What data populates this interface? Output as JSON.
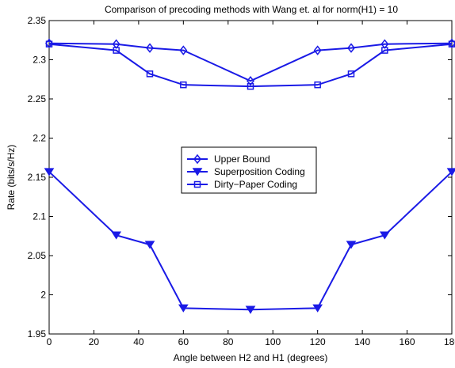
{
  "chart_data": {
    "type": "line",
    "title": "Comparison of precoding methods with Wang et. al for norm(H1) = 10",
    "xlabel": "Angle between H2 and H1 (degrees)",
    "ylabel": "Rate (bits/s/Hz)",
    "xlim": [
      0,
      180
    ],
    "ylim": [
      1.95,
      2.35
    ],
    "xticks": [
      0,
      20,
      40,
      60,
      80,
      100,
      120,
      140,
      160,
      180
    ],
    "xtick_labels": [
      "0",
      "20",
      "40",
      "60",
      "80",
      "100",
      "120",
      "140",
      "160",
      "180"
    ],
    "yticks": [
      1.95,
      2.0,
      2.05,
      2.1,
      2.15,
      2.2,
      2.25,
      2.3,
      2.35
    ],
    "ytick_labels": [
      "1.95",
      "2",
      "2.05",
      "2.1",
      "2.15",
      "2.2",
      "2.25",
      "2.3",
      "2.35"
    ],
    "grid": false,
    "legend_position": "center",
    "line_color": "#1a1ae6",
    "x": [
      0,
      30,
      45,
      60,
      90,
      120,
      135,
      150,
      180
    ],
    "series": [
      {
        "name": "Upper Bound",
        "marker": "diamond",
        "values": [
          2.321,
          2.32,
          2.315,
          2.312,
          2.273,
          2.312,
          2.315,
          2.32,
          2.321
        ]
      },
      {
        "name": "Superposition Coding",
        "marker": "triangle-down",
        "values": [
          2.157,
          2.076,
          2.064,
          1.983,
          1.981,
          1.983,
          2.064,
          2.076,
          2.157
        ]
      },
      {
        "name": "Dirty−Paper Coding",
        "marker": "square",
        "values": [
          2.32,
          2.312,
          2.282,
          2.268,
          2.266,
          2.268,
          2.282,
          2.312,
          2.32
        ]
      }
    ]
  }
}
